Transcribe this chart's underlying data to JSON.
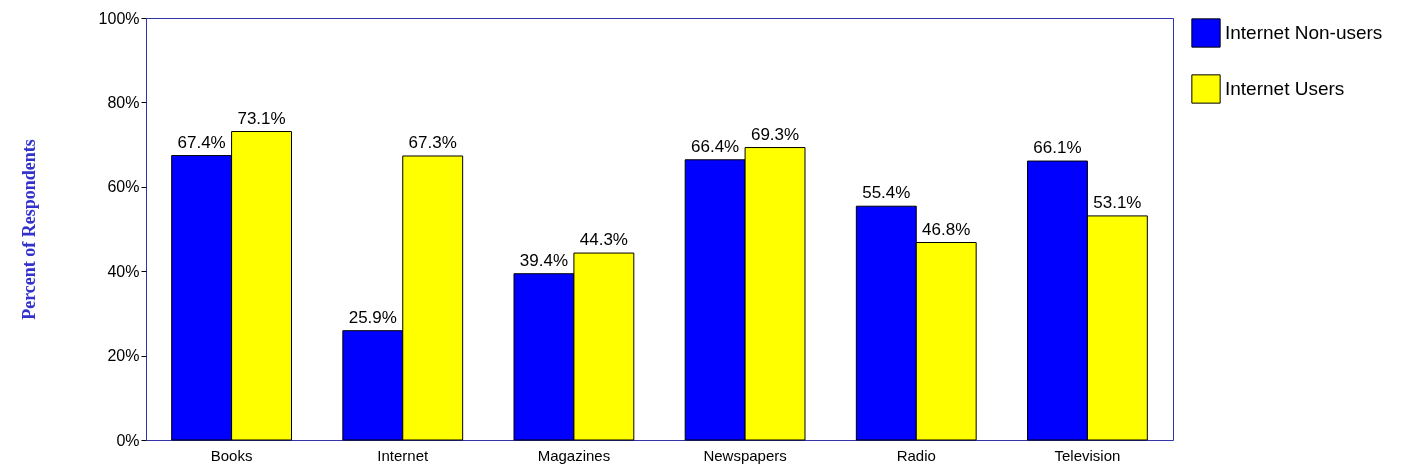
{
  "chart_data": {
    "type": "bar",
    "ylabel": "Percent of Respondents",
    "categories": [
      "Books",
      "Internet",
      "Magazines",
      "Newspapers",
      "Radio",
      "Television"
    ],
    "series": [
      {
        "name": "Internet Non-users",
        "color": "#0000ff",
        "values": [
          67.4,
          25.9,
          39.4,
          66.4,
          55.4,
          66.1
        ],
        "value_labels": [
          "67.4%",
          "25.9%",
          "39.4%",
          "66.4%",
          "55.4%",
          "66.1%"
        ]
      },
      {
        "name": "Internet Users",
        "color": "#ffff00",
        "values": [
          73.1,
          67.3,
          44.3,
          69.3,
          46.8,
          53.1
        ],
        "value_labels": [
          "73.1%",
          "67.3%",
          "44.3%",
          "69.3%",
          "46.8%",
          "53.1%"
        ]
      }
    ],
    "ylim": [
      0,
      100
    ],
    "yticks": [
      {
        "value": 0,
        "label": "0%"
      },
      {
        "value": 20,
        "label": "20%"
      },
      {
        "value": 40,
        "label": "40%"
      },
      {
        "value": 60,
        "label": "60%"
      },
      {
        "value": 80,
        "label": "80%"
      },
      {
        "value": 100,
        "label": "100%"
      }
    ],
    "grid": false,
    "legend": "right"
  }
}
